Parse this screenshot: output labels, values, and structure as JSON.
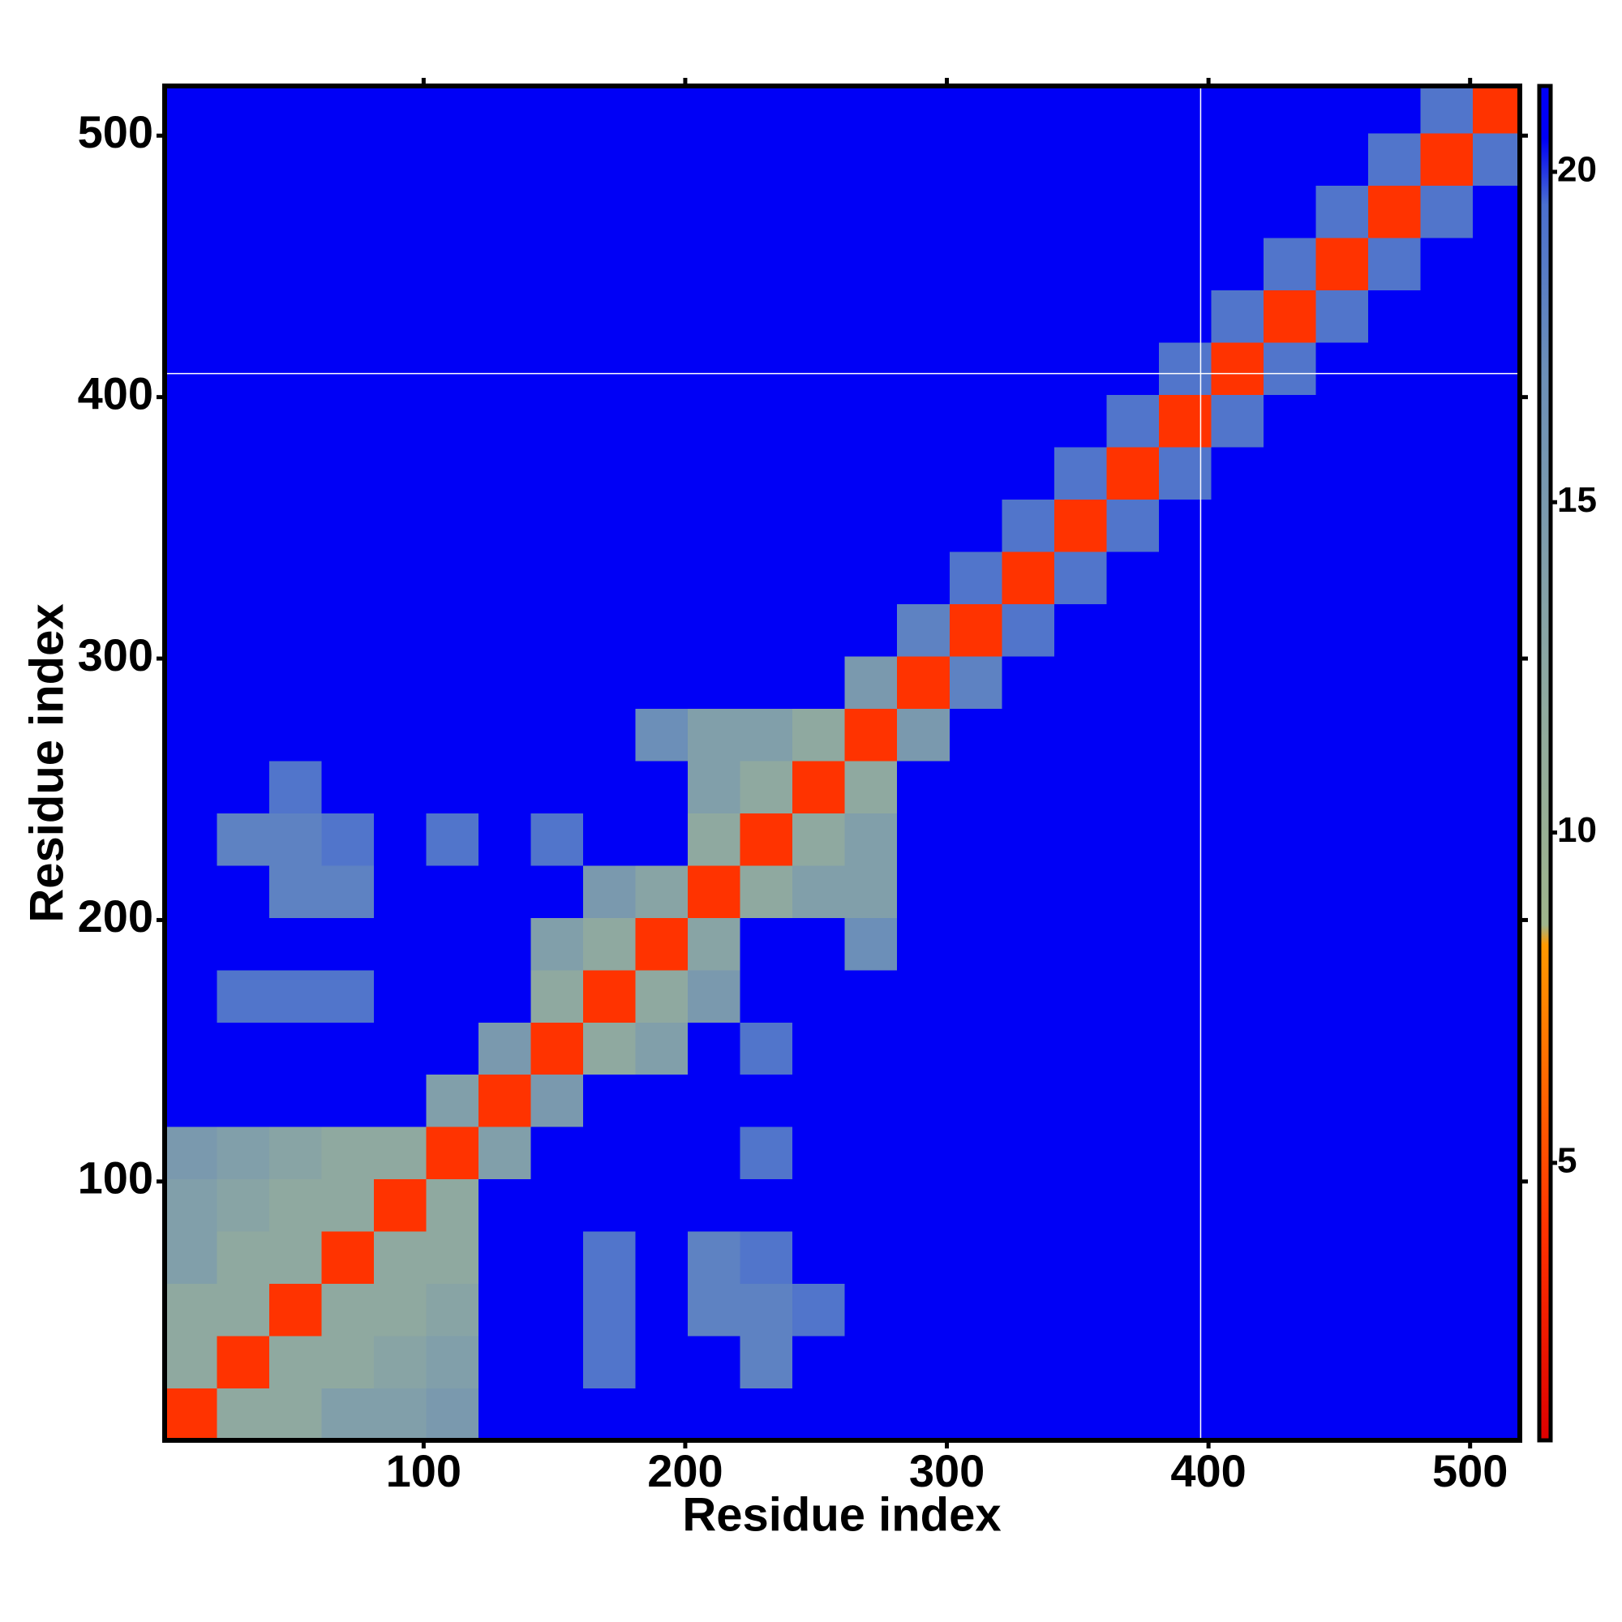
{
  "chart_data": {
    "type": "heatmap",
    "xlabel": "Residue index",
    "ylabel": "Residue index",
    "xlim": [
      1,
      519
    ],
    "ylim": [
      1,
      519
    ],
    "xticks": [
      100,
      200,
      300,
      400,
      500
    ],
    "yticks": [
      100,
      200,
      300,
      400,
      500
    ],
    "x_bins": [
      1,
      21,
      41,
      61,
      81,
      101,
      121,
      141,
      161,
      181,
      201,
      221,
      241,
      261,
      281,
      301,
      321,
      341,
      361,
      381,
      401,
      421,
      441,
      461,
      481,
      501,
      521
    ],
    "y_bins": [
      1,
      21,
      41,
      61,
      81,
      101,
      121,
      141,
      161,
      181,
      201,
      221,
      241,
      261,
      281,
      301,
      321,
      341,
      361,
      381,
      401,
      421,
      441,
      461,
      481,
      501,
      521
    ],
    "zlim": [
      0.8,
      21.3
    ],
    "zticks": [
      5,
      10,
      15,
      20
    ],
    "colorscale": [
      [
        0.8,
        "#dd0000"
      ],
      [
        4,
        "#ff3300"
      ],
      [
        8.3,
        "#ff9900"
      ],
      [
        8.6,
        "#9fb48c"
      ],
      [
        12,
        "#8fa9a0"
      ],
      [
        17,
        "#6c8fb8"
      ],
      [
        19.5,
        "#4a6fd0"
      ],
      [
        20.5,
        "#0000f6"
      ],
      [
        21.3,
        "#0000f6"
      ]
    ],
    "vlines": [
      397
    ],
    "hlines": [
      409
    ],
    "z": [
      [
        4,
        12,
        12,
        14,
        14,
        15,
        21,
        21,
        21,
        21,
        21,
        21,
        21,
        21,
        21,
        21,
        21,
        21,
        21,
        21,
        21,
        21,
        21,
        21,
        21,
        21
      ],
      [
        12,
        4,
        12,
        12,
        13,
        14,
        21,
        21,
        19,
        21,
        21,
        18,
        21,
        21,
        21,
        21,
        21,
        21,
        21,
        21,
        21,
        21,
        21,
        21,
        21,
        21
      ],
      [
        12,
        12,
        4,
        12,
        12,
        13,
        21,
        21,
        19,
        21,
        18,
        18,
        19,
        21,
        21,
        21,
        21,
        21,
        21,
        21,
        21,
        21,
        21,
        21,
        21,
        21
      ],
      [
        14,
        12,
        12,
        4,
        12,
        12,
        21,
        21,
        19,
        21,
        18,
        19,
        21,
        21,
        21,
        21,
        21,
        21,
        21,
        21,
        21,
        21,
        21,
        21,
        21,
        21
      ],
      [
        14,
        13,
        12,
        12,
        4,
        12,
        21,
        21,
        21,
        21,
        21,
        21,
        21,
        21,
        21,
        21,
        21,
        21,
        21,
        21,
        21,
        21,
        21,
        21,
        21,
        21
      ],
      [
        15,
        14,
        13,
        12,
        12,
        4,
        14,
        21,
        21,
        21,
        21,
        19,
        21,
        21,
        21,
        21,
        21,
        21,
        21,
        21,
        21,
        21,
        21,
        21,
        21,
        21
      ],
      [
        21,
        21,
        21,
        21,
        21,
        14,
        4,
        15,
        21,
        21,
        21,
        21,
        21,
        21,
        21,
        21,
        21,
        21,
        21,
        21,
        21,
        21,
        21,
        21,
        21,
        21
      ],
      [
        21,
        21,
        21,
        21,
        21,
        21,
        15,
        4,
        12,
        14,
        21,
        19,
        21,
        21,
        21,
        21,
        21,
        21,
        21,
        21,
        21,
        21,
        21,
        21,
        21,
        21
      ],
      [
        21,
        19,
        19,
        19,
        21,
        21,
        21,
        12,
        4,
        12,
        15,
        21,
        21,
        21,
        21,
        21,
        21,
        21,
        21,
        21,
        21,
        21,
        21,
        21,
        21,
        21
      ],
      [
        21,
        21,
        21,
        21,
        21,
        21,
        21,
        14,
        12,
        4,
        13,
        21,
        21,
        17,
        21,
        21,
        21,
        21,
        21,
        21,
        21,
        21,
        21,
        21,
        21,
        21
      ],
      [
        21,
        21,
        18,
        18,
        21,
        21,
        21,
        21,
        15,
        13,
        4,
        12,
        14,
        14,
        21,
        21,
        21,
        21,
        21,
        21,
        21,
        21,
        21,
        21,
        21,
        21
      ],
      [
        21,
        18,
        18,
        19,
        21,
        19,
        21,
        19,
        21,
        21,
        12,
        4,
        12,
        14,
        21,
        21,
        21,
        21,
        21,
        21,
        21,
        21,
        21,
        21,
        21,
        21
      ],
      [
        21,
        21,
        19,
        21,
        21,
        21,
        21,
        21,
        21,
        21,
        14,
        12,
        4,
        12,
        21,
        21,
        21,
        21,
        21,
        21,
        21,
        21,
        21,
        21,
        21,
        21
      ],
      [
        21,
        21,
        21,
        21,
        21,
        21,
        21,
        21,
        21,
        17,
        14,
        14,
        12,
        4,
        15,
        21,
        21,
        21,
        21,
        21,
        21,
        21,
        21,
        21,
        21,
        21
      ],
      [
        21,
        21,
        21,
        21,
        21,
        21,
        21,
        21,
        21,
        21,
        21,
        21,
        21,
        15,
        4,
        18,
        21,
        21,
        21,
        21,
        21,
        21,
        21,
        21,
        21,
        21
      ],
      [
        21,
        21,
        21,
        21,
        21,
        21,
        21,
        21,
        21,
        21,
        21,
        21,
        21,
        21,
        18,
        4,
        19,
        21,
        21,
        21,
        21,
        21,
        21,
        21,
        21,
        21
      ],
      [
        21,
        21,
        21,
        21,
        21,
        21,
        21,
        21,
        21,
        21,
        21,
        21,
        21,
        21,
        21,
        19,
        4,
        19,
        21,
        21,
        21,
        21,
        21,
        21,
        21,
        21
      ],
      [
        21,
        21,
        21,
        21,
        21,
        21,
        21,
        21,
        21,
        21,
        21,
        21,
        21,
        21,
        21,
        21,
        19,
        4,
        19,
        21,
        21,
        21,
        21,
        21,
        21,
        21
      ],
      [
        21,
        21,
        21,
        21,
        21,
        21,
        21,
        21,
        21,
        21,
        21,
        21,
        21,
        21,
        21,
        21,
        21,
        19,
        4,
        19,
        21,
        21,
        21,
        21,
        21,
        21
      ],
      [
        21,
        21,
        21,
        21,
        21,
        21,
        21,
        21,
        21,
        21,
        21,
        21,
        21,
        21,
        21,
        21,
        21,
        21,
        19,
        4,
        19,
        21,
        21,
        21,
        21,
        21
      ],
      [
        21,
        21,
        21,
        21,
        21,
        21,
        21,
        21,
        21,
        21,
        21,
        21,
        21,
        21,
        21,
        21,
        21,
        21,
        21,
        19,
        4,
        19,
        21,
        21,
        21,
        21
      ],
      [
        21,
        21,
        21,
        21,
        21,
        21,
        21,
        21,
        21,
        21,
        21,
        21,
        21,
        21,
        21,
        21,
        21,
        21,
        21,
        21,
        19,
        4,
        19,
        21,
        21,
        21
      ],
      [
        21,
        21,
        21,
        21,
        21,
        21,
        21,
        21,
        21,
        21,
        21,
        21,
        21,
        21,
        21,
        21,
        21,
        21,
        21,
        21,
        21,
        19,
        4,
        19,
        21,
        21
      ],
      [
        21,
        21,
        21,
        21,
        21,
        21,
        21,
        21,
        21,
        21,
        21,
        21,
        21,
        21,
        21,
        21,
        21,
        21,
        21,
        21,
        21,
        21,
        19,
        4,
        19,
        21
      ],
      [
        21,
        21,
        21,
        21,
        21,
        21,
        21,
        21,
        21,
        21,
        21,
        21,
        21,
        21,
        21,
        21,
        21,
        21,
        21,
        21,
        21,
        21,
        21,
        19,
        4,
        19
      ],
      [
        21,
        21,
        21,
        21,
        21,
        21,
        21,
        21,
        21,
        21,
        21,
        21,
        21,
        21,
        21,
        21,
        21,
        21,
        21,
        21,
        21,
        21,
        21,
        21,
        19,
        4
      ]
    ]
  }
}
